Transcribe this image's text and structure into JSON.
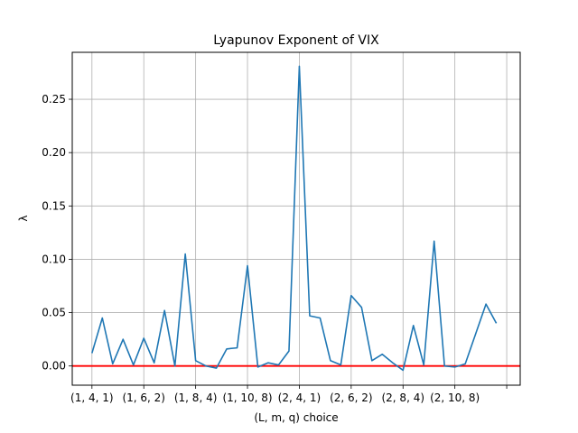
{
  "chart_data": {
    "type": "line",
    "title": "Lyapunov Exponent of VIX",
    "xlabel": "(L, m, q) choice",
    "ylabel": "λ",
    "ylim": [
      -0.018,
      0.294
    ],
    "xlim": [
      -1.9,
      41.3
    ],
    "grid": true,
    "x_ticks": [
      {
        "x": 0,
        "label": "(1, 4, 1)"
      },
      {
        "x": 5,
        "label": "(1, 6, 2)"
      },
      {
        "x": 10,
        "label": "(1, 8, 4)"
      },
      {
        "x": 15,
        "label": "(1, 10, 8)"
      },
      {
        "x": 20,
        "label": "(2, 4, 1)"
      },
      {
        "x": 25,
        "label": "(2, 6, 2)"
      },
      {
        "x": 30,
        "label": "(2, 8, 4)"
      },
      {
        "x": 35,
        "label": "(2, 10, 8)"
      },
      {
        "x": 40,
        "label": ""
      }
    ],
    "y_ticks": [
      0.0,
      0.05,
      0.1,
      0.15,
      0.2,
      0.25
    ],
    "y_tick_labels": [
      "0.00",
      "0.05",
      "0.10",
      "0.15",
      "0.20",
      "0.25"
    ],
    "series": [
      {
        "name": "λ",
        "color": "#1f77b4",
        "values": [
          0.012,
          0.045,
          0.002,
          0.025,
          0.001,
          0.026,
          0.003,
          0.052,
          0.0,
          0.105,
          0.005,
          0.0,
          -0.002,
          0.016,
          0.017,
          0.094,
          -0.001,
          0.003,
          0.001,
          0.014,
          0.281,
          0.047,
          0.045,
          0.005,
          0.001,
          0.066,
          0.055,
          0.005,
          0.011,
          0.003,
          -0.004,
          0.038,
          0.001,
          0.117,
          0.0,
          -0.001,
          0.002,
          0.03,
          0.058,
          0.04
        ]
      }
    ],
    "reference_line": {
      "y": 0.0,
      "color": "#ff0000"
    }
  }
}
